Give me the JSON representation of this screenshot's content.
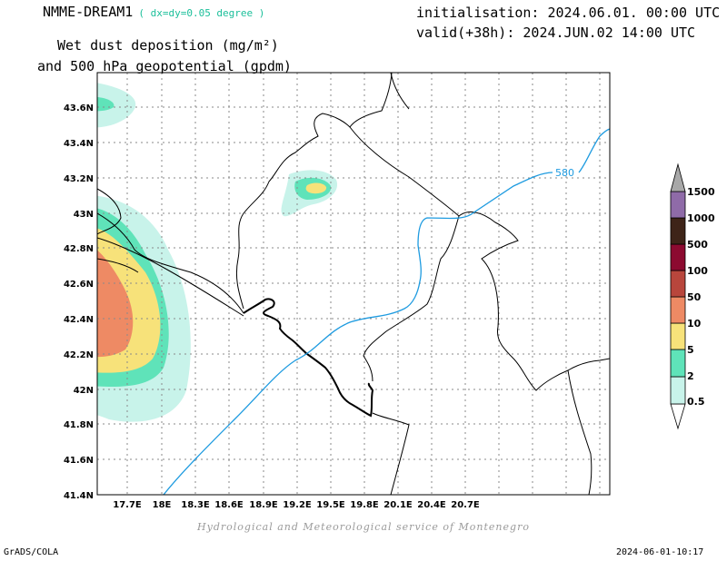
{
  "header": {
    "model": "NMME-DREAM1",
    "resolution": "( dx=dy=0.05 degree )",
    "title_line1": "Wet dust deposition (mg/m²)",
    "title_line2": "and 500 hPa geopotential (gpdm)",
    "initialisation": "initialisation: 2024.06.01. 00:00 UTC",
    "valid": "valid(+38h): 2024.JUN.02 14:00 UTC"
  },
  "map": {
    "lon_labels": [
      "17.7E",
      "18E",
      "18.3E",
      "18.6E",
      "18.9E",
      "19.2E",
      "19.5E",
      "19.8E",
      "20.1E",
      "20.4E",
      "20.7E"
    ],
    "lat_labels": [
      "43.6N",
      "43.4N",
      "43.2N",
      "43N",
      "42.8N",
      "42.6N",
      "42.4N",
      "42.2N",
      "42N",
      "41.8N",
      "41.6N",
      "41.4N"
    ],
    "contour_label": "580",
    "contour_color": "#1e9be0",
    "border_color": "#000000"
  },
  "colorbar": {
    "levels": [
      "0.5",
      "2",
      "5",
      "10",
      "50",
      "100",
      "500",
      "1000",
      "1500"
    ],
    "colors": [
      "#c8f3ea",
      "#5fe3b9",
      "#f7e27a",
      "#ee8a64",
      "#b8463c",
      "#8c0a30",
      "#3e2418",
      "#8f6ba8",
      "#a8a8a8"
    ]
  },
  "footer": {
    "credit": "Hydrological and Meteorological service of Montenegro",
    "software": "GrADS/COLA",
    "timestamp": "2024-06-01-10:17"
  }
}
